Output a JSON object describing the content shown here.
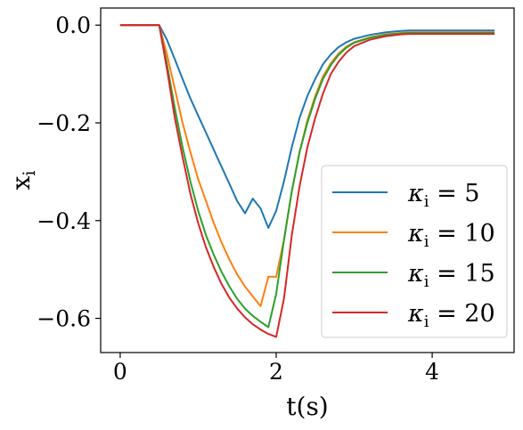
{
  "chart_data": {
    "type": "line",
    "title": "",
    "xlabel": "t(s)",
    "ylabel": "x_i",
    "xlim": [
      -0.25,
      5.05
    ],
    "ylim": [
      -0.67,
      0.035
    ],
    "xticks": [
      0,
      2,
      4
    ],
    "xtick_labels": [
      "0",
      "2",
      "4"
    ],
    "yticks": [
      0.0,
      -0.2,
      -0.4,
      -0.6
    ],
    "ytick_labels": [
      "0.0",
      "−0.2",
      "−0.4",
      "−0.6"
    ],
    "grid": false,
    "legend_position": "lower-right",
    "series": [
      {
        "name": "κ_i = 5",
        "color": "#1f77b4",
        "x": [
          0.0,
          0.5,
          0.6,
          0.7,
          0.8,
          0.9,
          1.0,
          1.1,
          1.2,
          1.3,
          1.4,
          1.5,
          1.6,
          1.7,
          1.8,
          1.9,
          2.0,
          2.1,
          2.2,
          2.3,
          2.4,
          2.5,
          2.6,
          2.7,
          2.8,
          2.9,
          3.0,
          3.2,
          3.4,
          3.6,
          3.7,
          4.8
        ],
        "y": [
          0.0,
          0.0,
          -0.03,
          -0.07,
          -0.11,
          -0.15,
          -0.185,
          -0.22,
          -0.255,
          -0.29,
          -0.325,
          -0.36,
          -0.385,
          -0.355,
          -0.375,
          -0.415,
          -0.38,
          -0.32,
          -0.25,
          -0.19,
          -0.145,
          -0.11,
          -0.08,
          -0.06,
          -0.045,
          -0.035,
          -0.028,
          -0.02,
          -0.015,
          -0.012,
          -0.011,
          -0.011
        ]
      },
      {
        "name": "κ_i = 10",
        "color": "#ff7f0e",
        "x": [
          0.0,
          0.5,
          0.6,
          0.7,
          0.8,
          0.9,
          1.0,
          1.1,
          1.2,
          1.3,
          1.4,
          1.5,
          1.6,
          1.7,
          1.8,
          1.9,
          2.0,
          2.1,
          2.2,
          2.3,
          2.4,
          2.5,
          2.6,
          2.7,
          2.8,
          2.9,
          3.0,
          3.2,
          3.4,
          3.6,
          3.7,
          4.8
        ],
        "y": [
          0.0,
          0.0,
          -0.06,
          -0.13,
          -0.2,
          -0.26,
          -0.315,
          -0.36,
          -0.405,
          -0.445,
          -0.48,
          -0.51,
          -0.535,
          -0.555,
          -0.575,
          -0.515,
          -0.515,
          -0.44,
          -0.34,
          -0.26,
          -0.195,
          -0.145,
          -0.105,
          -0.078,
          -0.058,
          -0.044,
          -0.035,
          -0.025,
          -0.019,
          -0.016,
          -0.015,
          -0.015
        ]
      },
      {
        "name": "κ_i = 15",
        "color": "#2ca02c",
        "x": [
          0.0,
          0.5,
          0.6,
          0.7,
          0.8,
          0.9,
          1.0,
          1.1,
          1.2,
          1.3,
          1.4,
          1.5,
          1.6,
          1.7,
          1.8,
          1.9,
          2.0,
          2.1,
          2.2,
          2.3,
          2.4,
          2.5,
          2.6,
          2.7,
          2.8,
          2.9,
          3.0,
          3.2,
          3.4,
          3.6,
          3.7,
          4.8
        ],
        "y": [
          0.0,
          0.0,
          -0.08,
          -0.17,
          -0.25,
          -0.32,
          -0.38,
          -0.43,
          -0.47,
          -0.505,
          -0.535,
          -0.56,
          -0.58,
          -0.595,
          -0.607,
          -0.618,
          -0.55,
          -0.44,
          -0.34,
          -0.26,
          -0.2,
          -0.15,
          -0.11,
          -0.082,
          -0.061,
          -0.046,
          -0.036,
          -0.026,
          -0.02,
          -0.017,
          -0.016,
          -0.016
        ]
      },
      {
        "name": "κ_i = 20",
        "color": "#d62728",
        "x": [
          0.0,
          0.5,
          0.6,
          0.7,
          0.8,
          0.9,
          1.0,
          1.1,
          1.2,
          1.3,
          1.4,
          1.5,
          1.6,
          1.7,
          1.8,
          1.9,
          2.0,
          2.1,
          2.2,
          2.3,
          2.4,
          2.5,
          2.6,
          2.7,
          2.8,
          2.9,
          3.0,
          3.2,
          3.4,
          3.6,
          3.7,
          4.8
        ],
        "y": [
          0.0,
          0.0,
          -0.09,
          -0.19,
          -0.27,
          -0.345,
          -0.405,
          -0.455,
          -0.495,
          -0.53,
          -0.558,
          -0.58,
          -0.598,
          -0.612,
          -0.623,
          -0.632,
          -0.638,
          -0.56,
          -0.43,
          -0.33,
          -0.25,
          -0.19,
          -0.14,
          -0.1,
          -0.075,
          -0.056,
          -0.043,
          -0.03,
          -0.023,
          -0.019,
          -0.018,
          -0.018
        ]
      }
    ]
  },
  "legend": {
    "labels": [
      "5",
      "10",
      "15",
      "20"
    ]
  }
}
